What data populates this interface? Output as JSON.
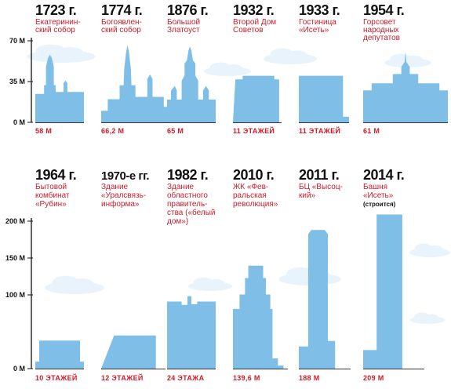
{
  "chart_data": [
    {
      "type": "bar",
      "ylim": [
        0,
        70
      ],
      "yticks": [
        0,
        35,
        70
      ],
      "ytick_labels": [
        "0 М",
        "35 М",
        "70 М"
      ],
      "grid": false,
      "categories": [
        {
          "year": "1723 г.",
          "name": [
            "Екатеринин-",
            "ский собор"
          ],
          "label": "58 М",
          "value": 58,
          "shape": "cathedral1"
        },
        {
          "year": "1774 г.",
          "name": [
            "Богоявлен-",
            "ский собор"
          ],
          "label": "66,2 М",
          "value": 66.2,
          "shape": "cathedral2"
        },
        {
          "year": "1876 г.",
          "name": [
            "Большой",
            "Златоуст"
          ],
          "label": "65 М",
          "value": 65,
          "shape": "church"
        },
        {
          "year": "1932 г.",
          "name": [
            "Второй Дом",
            "Советов"
          ],
          "label": "11 ЭТАЖЕЙ",
          "value": 40,
          "shape": "block"
        },
        {
          "year": "1933 г.",
          "name": [
            "Гостиница",
            "«Исеть»"
          ],
          "label": "11 ЭТАЖЕЙ",
          "value": 40,
          "shape": "block2"
        },
        {
          "year": "1954 г.",
          "name": [
            "Горсовет",
            "народных",
            "депутатов"
          ],
          "label": "61 М",
          "value": 61,
          "shape": "cityhall"
        }
      ]
    },
    {
      "type": "bar",
      "ylim": [
        0,
        200
      ],
      "yticks": [
        0,
        100,
        150,
        200
      ],
      "ytick_labels": [
        "0 М",
        "100 М",
        "150 М",
        "200 М"
      ],
      "grid": false,
      "categories": [
        {
          "year": "1964 г.",
          "name": [
            "Бытовой",
            "комбинат",
            "«Рубин»"
          ],
          "label": "10 ЭТАЖЕЙ",
          "value": 38,
          "shape": "rubin"
        },
        {
          "year": "1970-е гг.",
          "name": [
            "Здание",
            "«Уралсвязь-",
            "информа»"
          ],
          "label": "12 ЭТАЖЕЙ",
          "value": 45,
          "shape": "slab"
        },
        {
          "year": "1982 г.",
          "name": [
            "Здание",
            "областного",
            "правитель-",
            "ства («белый",
            "дом»)"
          ],
          "label": "24 ЭТАЖА",
          "value": 91,
          "shape": "whitehouse"
        },
        {
          "year": "2010 г.",
          "name": [
            "ЖК «Фев-",
            "ральская",
            "революция»"
          ],
          "label": "139,6 М",
          "value": 139.6,
          "shape": "stepped"
        },
        {
          "year": "2011 г.",
          "name": [
            "БЦ «Высоц-",
            "кий»"
          ],
          "label": "188 М",
          "value": 188,
          "shape": "tower"
        },
        {
          "year": "2014 г.",
          "name": [
            "Башня",
            "«Исеть»"
          ],
          "note": "(строится)",
          "label": "209 М",
          "value": 209,
          "shape": "iset"
        }
      ]
    }
  ]
}
